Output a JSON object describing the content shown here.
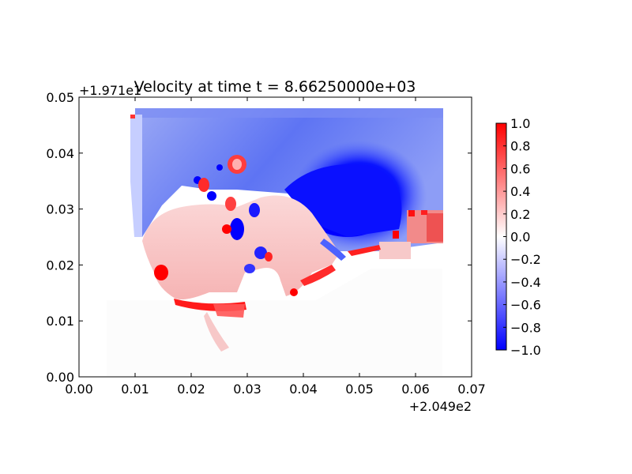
{
  "chart_data": {
    "type": "heatmap",
    "title": "Velocity at time t = 8.66250000e+03",
    "x_offset_label": "+2.049e2",
    "y_offset_label": "+1.971e1",
    "xlim": [
      0.0,
      0.07
    ],
    "ylim": [
      0.0,
      0.05
    ],
    "x_ticks": [
      "0.00",
      "0.01",
      "0.02",
      "0.03",
      "0.04",
      "0.05",
      "0.06",
      "0.07"
    ],
    "y_ticks": [
      "0.00",
      "0.01",
      "0.02",
      "0.03",
      "0.04",
      "0.05"
    ],
    "colormap": "bwr",
    "colorbar": {
      "range": [
        -1.0,
        1.0
      ],
      "ticks": [
        "1.0",
        "0.8",
        "0.6",
        "0.4",
        "0.2",
        "0.0",
        "−0.2",
        "−0.4",
        "−0.6",
        "−0.8",
        "−1.0"
      ],
      "low_color": "#0000ff",
      "mid_color": "#ffffff",
      "high_color": "#ff0000"
    },
    "field": {
      "grid_extent_x": [
        0.01,
        0.065
      ],
      "grid_extent_y": [
        0.024,
        0.048
      ],
      "regions": [
        {
          "name": "northern water body",
          "x": [
            0.01,
            0.065
          ],
          "y": [
            0.026,
            0.048
          ],
          "velocity": -0.45
        },
        {
          "name": "strong negative core",
          "x": [
            0.038,
            0.056
          ],
          "y": [
            0.026,
            0.041
          ],
          "velocity": -0.95
        },
        {
          "name": "eastern edge cells",
          "x": [
            0.056,
            0.065
          ],
          "y": [
            0.024,
            0.029
          ],
          "velocity": 0.6
        },
        {
          "name": "central basin",
          "x": [
            0.012,
            0.03
          ],
          "y": [
            0.017,
            0.029
          ],
          "velocity": 0.3
        },
        {
          "name": "southern shoreline",
          "x": [
            0.018,
            0.031
          ],
          "y": [
            0.012,
            0.014
          ],
          "velocity": 0.9
        },
        {
          "name": "southern land",
          "x": [
            0.005,
            0.065
          ],
          "y": [
            0.0,
            0.012
          ],
          "velocity": 0.0
        }
      ]
    }
  }
}
